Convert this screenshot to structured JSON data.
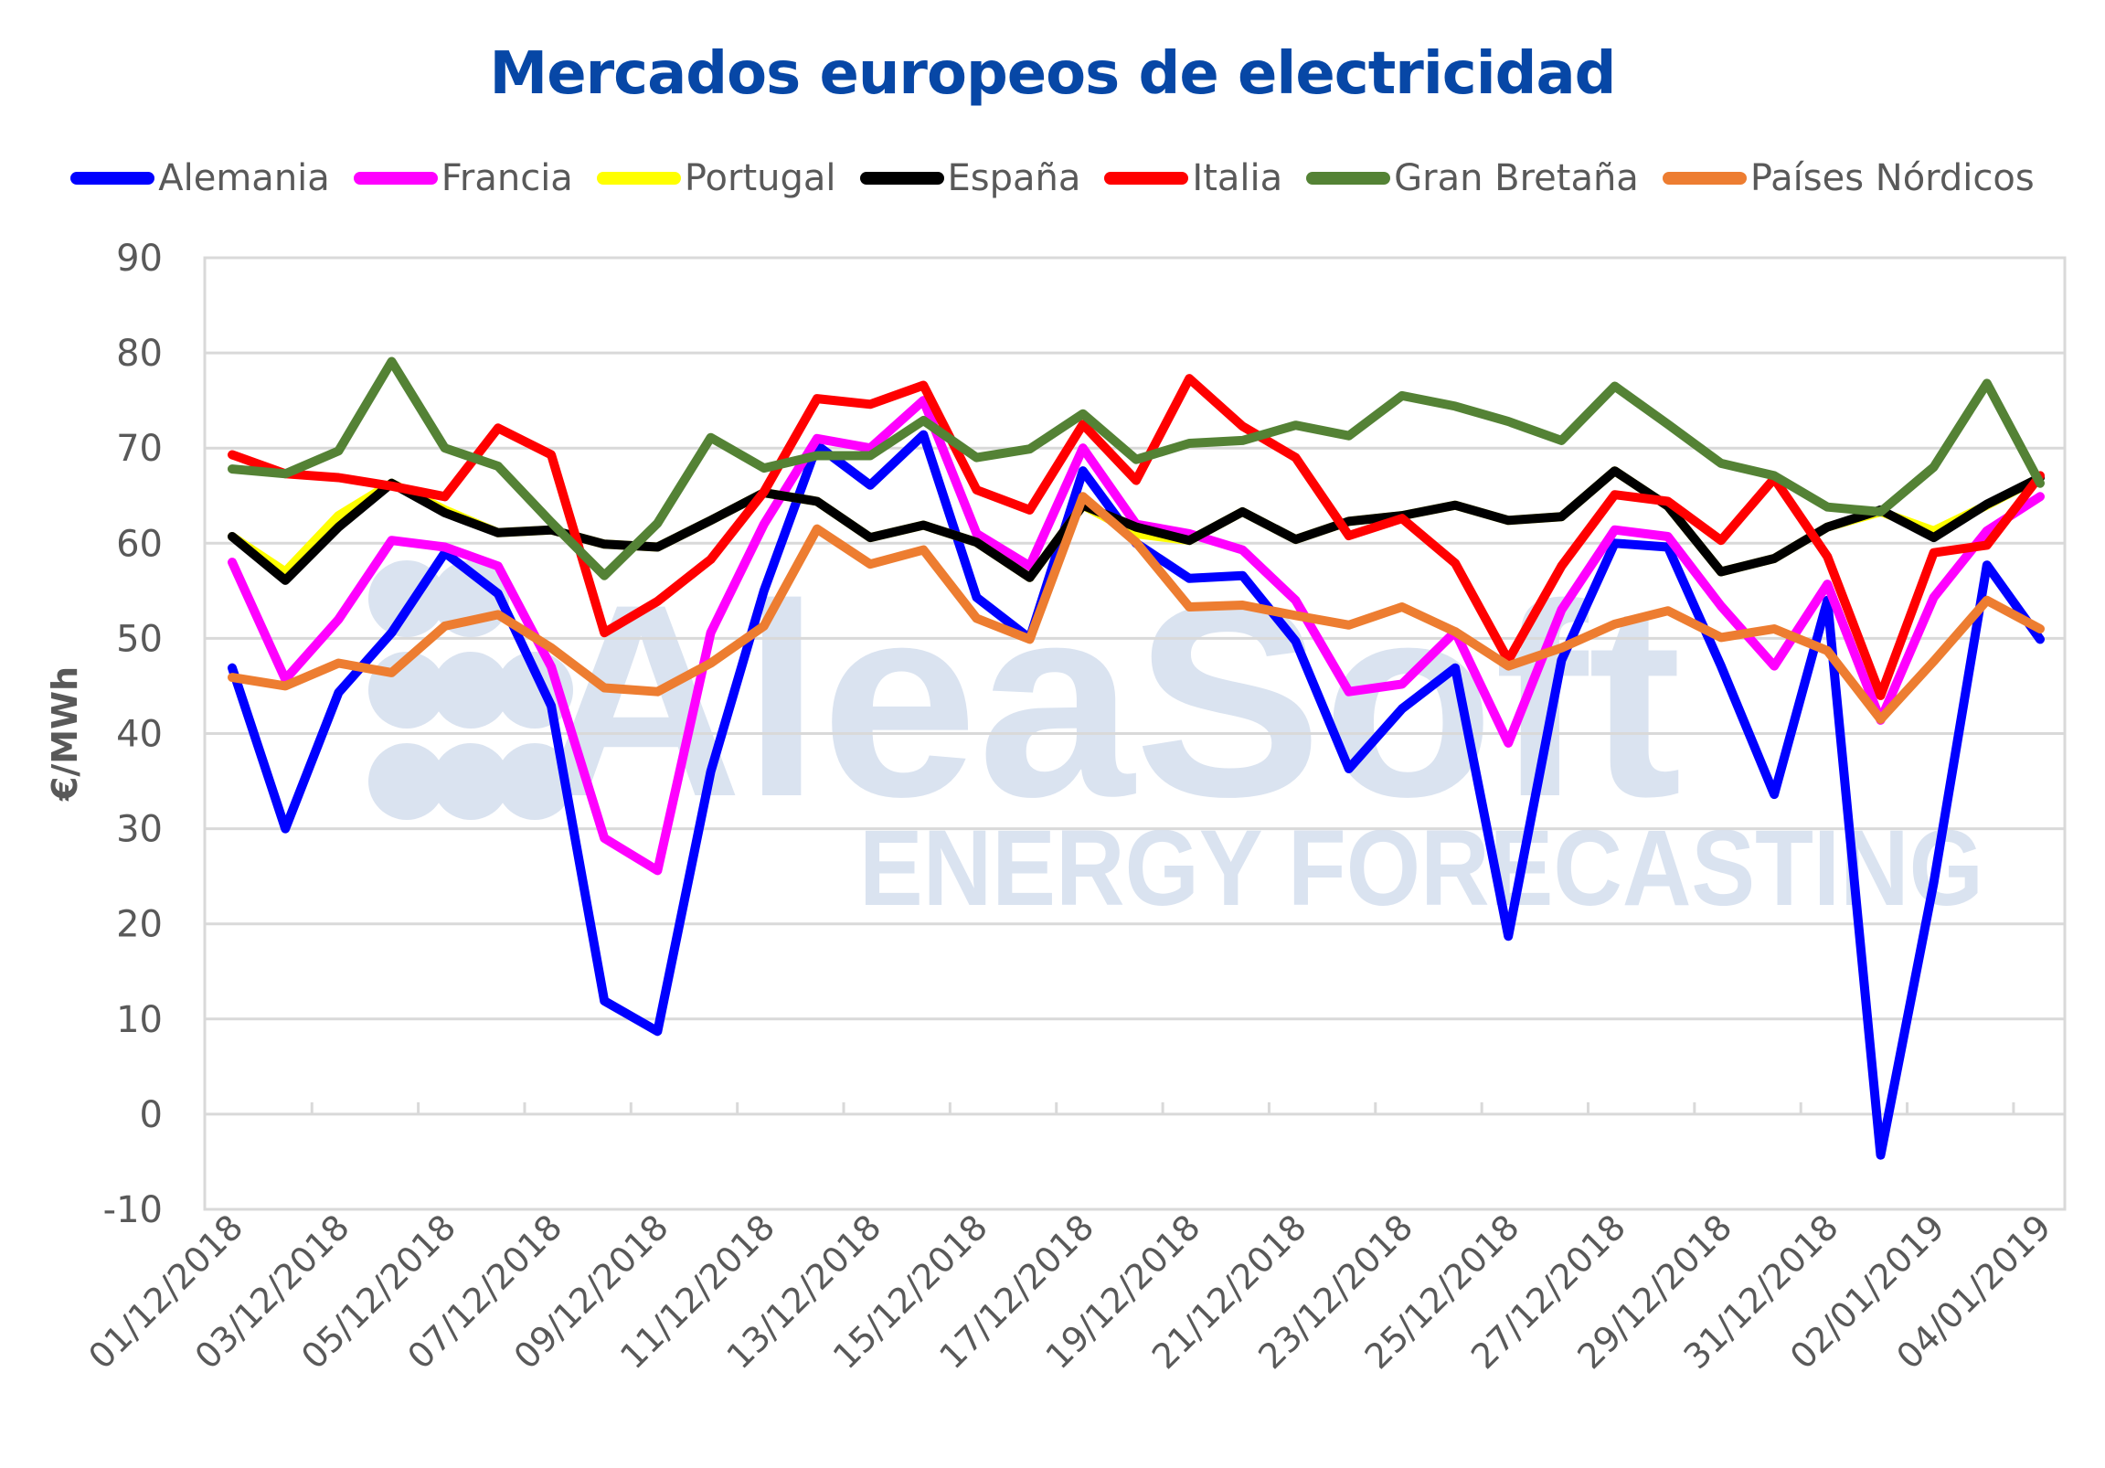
{
  "chart_data": {
    "type": "line",
    "title": "Mercados europeos de electricidad",
    "xlabel": "",
    "ylabel": "€/MWh",
    "ylim": [
      -10,
      90
    ],
    "yticks": [
      -10,
      0,
      10,
      20,
      30,
      40,
      50,
      60,
      70,
      80,
      90
    ],
    "grid": true,
    "legend_position": "top",
    "x": [
      "01/12/2018",
      "02/12/2018",
      "03/12/2018",
      "04/12/2018",
      "05/12/2018",
      "06/12/2018",
      "07/12/2018",
      "08/12/2018",
      "09/12/2018",
      "10/12/2018",
      "11/12/2018",
      "12/12/2018",
      "13/12/2018",
      "14/12/2018",
      "15/12/2018",
      "16/12/2018",
      "17/12/2018",
      "18/12/2018",
      "19/12/2018",
      "20/12/2018",
      "21/12/2018",
      "22/12/2018",
      "23/12/2018",
      "24/12/2018",
      "25/12/2018",
      "26/12/2018",
      "27/12/2018",
      "28/12/2018",
      "29/12/2018",
      "30/12/2018",
      "31/12/2018",
      "01/01/2019",
      "02/01/2019",
      "03/01/2019",
      "04/01/2019"
    ],
    "xtick_labels": [
      "01/12/2018",
      "03/12/2018",
      "05/12/2018",
      "07/12/2018",
      "09/12/2018",
      "11/12/2018",
      "13/12/2018",
      "15/12/2018",
      "17/12/2018",
      "19/12/2018",
      "21/12/2018",
      "23/12/2018",
      "25/12/2018",
      "27/12/2018",
      "29/12/2018",
      "31/12/2018",
      "02/01/2019",
      "04/01/2019"
    ],
    "series": [
      {
        "name": "Alemania",
        "color": "#0000ff",
        "values": [
          46.9,
          30.0,
          44.3,
          50.6,
          59.0,
          54.7,
          42.9,
          11.9,
          8.7,
          36.0,
          55.0,
          70.3,
          66.1,
          71.4,
          54.3,
          50.0,
          67.6,
          60.0,
          56.3,
          56.6,
          49.7,
          36.3,
          42.6,
          46.9,
          18.7,
          47.7,
          60.0,
          59.6,
          47.1,
          33.6,
          54.0,
          -4.3,
          24.3,
          57.7,
          49.9
        ]
      },
      {
        "name": "Francia",
        "color": "#ff00ff",
        "values": [
          58.0,
          45.7,
          52.0,
          60.3,
          59.6,
          57.6,
          47.0,
          29.0,
          25.6,
          50.6,
          62.0,
          71.0,
          70.0,
          75.0,
          61.0,
          57.6,
          70.0,
          62.0,
          61.0,
          59.3,
          54.0,
          44.4,
          45.2,
          50.7,
          39.0,
          53.0,
          61.4,
          60.7,
          53.4,
          47.1,
          55.7,
          41.4,
          54.3,
          61.3,
          64.9
        ]
      },
      {
        "name": "Portugal",
        "color": "#ffff00",
        "values": [
          60.7,
          57.0,
          62.9,
          66.3,
          63.5,
          61.1,
          61.4,
          59.9,
          59.6,
          62.4,
          65.3,
          64.4,
          60.6,
          61.9,
          60.1,
          56.4,
          64.0,
          61.0,
          60.3,
          63.3,
          60.4,
          62.3,
          62.9,
          64.0,
          62.4,
          62.8,
          67.6,
          63.9,
          57.0,
          58.4,
          61.7,
          63.3,
          61.3,
          64.0,
          66.9
        ]
      },
      {
        "name": "España",
        "color": "#000000",
        "values": [
          60.7,
          56.1,
          61.7,
          66.3,
          63.2,
          61.1,
          61.4,
          59.9,
          59.6,
          62.4,
          65.3,
          64.4,
          60.6,
          61.9,
          60.1,
          56.4,
          64.0,
          61.7,
          60.3,
          63.3,
          60.4,
          62.3,
          62.9,
          64.0,
          62.4,
          62.8,
          67.6,
          63.9,
          57.0,
          58.4,
          61.7,
          63.5,
          60.6,
          64.1,
          66.9
        ]
      },
      {
        "name": "Italia",
        "color": "#ff0000",
        "values": [
          69.3,
          67.3,
          66.9,
          66.0,
          64.9,
          72.1,
          69.3,
          50.6,
          53.9,
          58.3,
          65.4,
          75.2,
          74.6,
          76.6,
          65.6,
          63.5,
          72.5,
          66.6,
          77.3,
          72.3,
          69.0,
          60.8,
          62.6,
          57.9,
          47.7,
          57.6,
          65.1,
          64.4,
          60.3,
          66.8,
          58.6,
          44.0,
          59.0,
          59.8,
          67.1
        ]
      },
      {
        "name": "Gran Bretaña",
        "color": "#548235",
        "values": [
          67.8,
          67.3,
          69.7,
          79.1,
          70.0,
          68.1,
          62.2,
          56.6,
          62.1,
          71.1,
          67.9,
          69.2,
          69.2,
          72.9,
          69.0,
          69.9,
          73.6,
          68.8,
          70.5,
          70.8,
          72.4,
          71.3,
          75.5,
          74.4,
          72.8,
          70.8,
          76.5,
          72.5,
          68.4,
          67.1,
          63.8,
          63.3,
          68.0,
          76.8,
          66.3
        ]
      },
      {
        "name": "Países Nórdicos",
        "color": "#ed7d31",
        "values": [
          45.9,
          45.0,
          47.4,
          46.4,
          51.3,
          52.5,
          49.0,
          44.8,
          44.4,
          47.4,
          51.3,
          61.5,
          57.8,
          59.3,
          52.1,
          49.9,
          64.9,
          60.1,
          53.3,
          53.5,
          52.4,
          51.4,
          53.3,
          50.7,
          47.1,
          49.0,
          51.5,
          52.9,
          50.1,
          51.0,
          48.7,
          41.5,
          47.6,
          54.0,
          51.0
        ]
      }
    ]
  },
  "watermark": {
    "brand": "AleaSoft",
    "tagline": "ENERGY FORECASTING",
    "color": "#dae3f0"
  },
  "style": {
    "title_color": "#0747a6",
    "axis_text_color": "#595959",
    "grid_color": "#d9d9d9"
  }
}
